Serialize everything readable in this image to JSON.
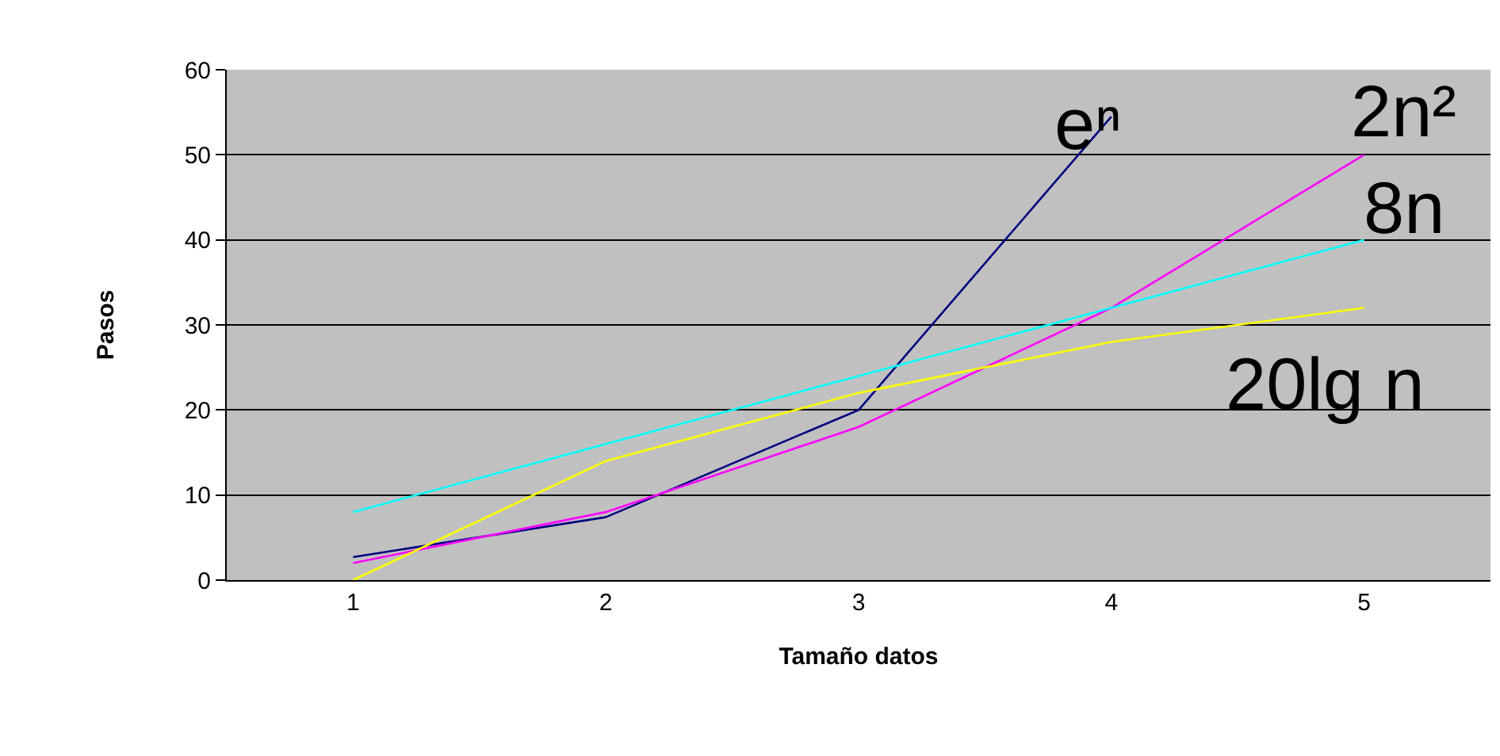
{
  "chart_data": {
    "type": "line",
    "xlabel": "Tamaño datos",
    "ylabel": "Pasos",
    "categories": [
      "1",
      "2",
      "3",
      "4",
      "5"
    ],
    "series": [
      {
        "name": "eⁿ",
        "color": "#000080",
        "values": [
          2.7,
          7.4,
          20,
          54.5,
          null
        ]
      },
      {
        "name": "2n²",
        "color": "#ff00ff",
        "values": [
          2,
          8,
          18,
          32,
          50
        ]
      },
      {
        "name": "8n",
        "color": "#00ffff",
        "values": [
          8,
          16,
          24,
          32,
          40
        ]
      },
      {
        "name": "20lg n",
        "color": "#ffff00",
        "values": [
          0,
          14,
          22,
          28,
          32
        ]
      }
    ],
    "ylim": [
      0,
      60
    ],
    "yticks": [
      0,
      10,
      20,
      30,
      40,
      50,
      60
    ],
    "grid": "y",
    "legend": false,
    "marker": "none",
    "line_style": "solid"
  }
}
